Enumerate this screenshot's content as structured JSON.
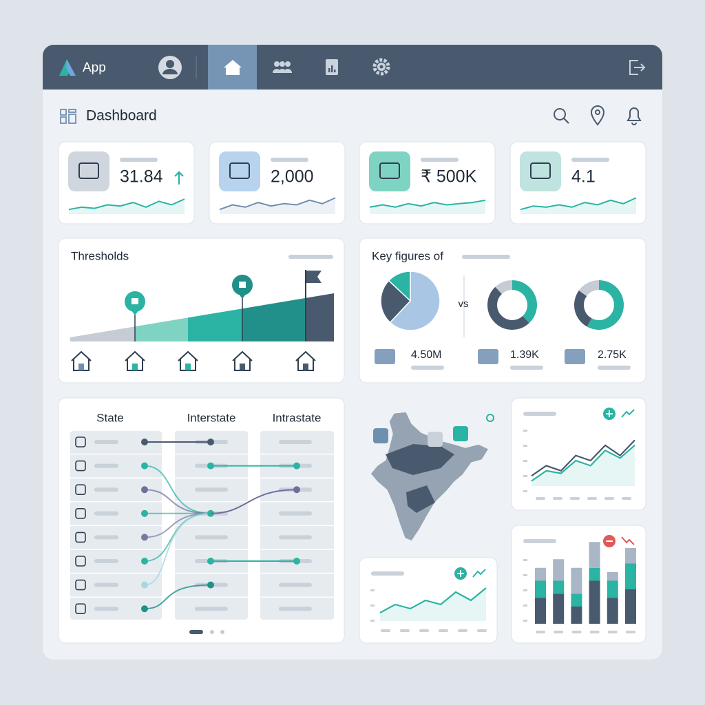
{
  "nav": {
    "app_name": "App"
  },
  "header": {
    "title": "Dashboard"
  },
  "kpis": [
    {
      "value": "31.84",
      "color": "#2bb3a3",
      "trend": [
        2,
        3,
        2.5,
        4,
        3.5,
        5,
        3,
        5.5,
        4,
        6.5
      ]
    },
    {
      "value": "2,000",
      "color": "#6f8fb0",
      "trend": [
        2,
        4,
        3,
        5,
        3.5,
        4.5,
        4,
        6,
        4.5,
        7
      ]
    },
    {
      "value": "₹ 500K",
      "color": "#2bb3a3",
      "trend": [
        3,
        4,
        3,
        4.5,
        3.5,
        5,
        4,
        4.5,
        5,
        6
      ]
    },
    {
      "value": "4.1",
      "color": "#2bb3a3",
      "trend": [
        2,
        3.5,
        3,
        4,
        3,
        5,
        4,
        6,
        4.5,
        7
      ]
    }
  ],
  "thresholds": {
    "title": "Thresholds"
  },
  "key_figures": {
    "title": "Key figures of",
    "vs": "vs",
    "charts": [
      {
        "type": "pie",
        "values": [
          62,
          25,
          13
        ],
        "colors": [
          "#a9c6e4",
          "#4a5a6e",
          "#2bb3a3"
        ]
      },
      {
        "type": "donut",
        "values": [
          38,
          50,
          12
        ],
        "colors": [
          "#2bb3a3",
          "#4a5a6e",
          "#c5ccd4"
        ]
      },
      {
        "type": "donut",
        "values": [
          58,
          27,
          15
        ],
        "colors": [
          "#2bb3a3",
          "#4a5a6e",
          "#c5ccd4"
        ]
      }
    ],
    "figures": [
      "4.50M",
      "1.39K",
      "2.75K"
    ]
  },
  "flows": {
    "columns": [
      "State",
      "Interstate",
      "Intrastate"
    ]
  },
  "line_chart_top": {
    "series": [
      {
        "color": "#4a5a6e",
        "values": [
          2,
          4,
          3,
          6,
          5,
          8,
          6,
          9
        ]
      },
      {
        "color": "#2bb3a3",
        "values": [
          1,
          3,
          2.5,
          5,
          4,
          7,
          5.5,
          8
        ]
      }
    ]
  },
  "line_chart_bottom": {
    "color": "#2bb3a3",
    "values": [
      2,
      4,
      3,
      5,
      4,
      7,
      5,
      8
    ]
  },
  "bar_chart": {
    "series": [
      {
        "color": "#4a5a6e",
        "values": [
          3,
          3.5,
          2,
          5,
          3,
          4
        ]
      },
      {
        "color": "#2bb3a3",
        "values": [
          2,
          1.5,
          1.5,
          1.5,
          2,
          3
        ]
      },
      {
        "color": "#a9b6c6",
        "values": [
          1.5,
          2.5,
          3,
          3,
          1,
          1.8
        ]
      }
    ]
  }
}
